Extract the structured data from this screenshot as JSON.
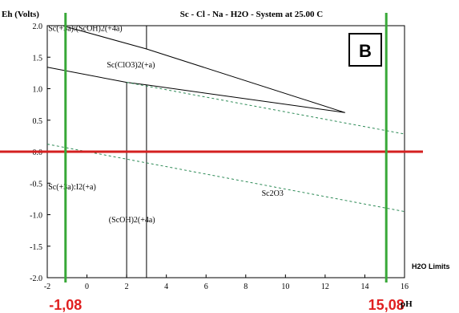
{
  "chart_data": {
    "type": "line",
    "title": "Sc - Cl - Na - H2O - System at 25.00 C",
    "ylabel": "Eh (Volts)",
    "xlabel": "pH",
    "xlim": [
      -2,
      16
    ],
    "ylim": [
      -2.0,
      2.0
    ],
    "x_ticks": [
      -2,
      0,
      2,
      4,
      6,
      8,
      10,
      12,
      14,
      16
    ],
    "y_ticks": [
      2.0,
      1.5,
      1.0,
      0.5,
      0.0,
      -0.5,
      -1.0,
      -1.5,
      -2.0
    ],
    "y_tick_labels": [
      "2.0",
      "1.5",
      "1.0",
      "0.5",
      "0.0",
      "-0.5",
      "-1.0",
      "-1.5",
      "-2.0"
    ],
    "series": [
      {
        "style": "solid-black",
        "points": [
          [
            -1.2,
            2.0
          ],
          [
            -1.0,
            1.98
          ],
          [
            3.0,
            1.63
          ],
          [
            13.0,
            0.62
          ]
        ]
      },
      {
        "style": "solid-black",
        "points": [
          [
            -2.0,
            1.34
          ],
          [
            2.0,
            1.1
          ],
          [
            3.0,
            1.06
          ],
          [
            13.0,
            0.62
          ]
        ]
      },
      {
        "style": "solid-black",
        "points": [
          [
            2.0,
            1.1
          ],
          [
            2.0,
            -2.0
          ]
        ]
      },
      {
        "style": "solid-black",
        "points": [
          [
            3.0,
            1.06
          ],
          [
            3.0,
            -2.0
          ]
        ]
      },
      {
        "style": "solid-black",
        "points": [
          [
            3.0,
            2.0
          ],
          [
            3.0,
            1.63
          ]
        ]
      },
      {
        "style": "dashed-green",
        "points": [
          [
            2.0,
            1.1
          ],
          [
            16.0,
            0.28
          ]
        ]
      },
      {
        "style": "dashed-green",
        "points": [
          [
            -2.0,
            0.12
          ],
          [
            16.0,
            -0.95
          ]
        ]
      }
    ],
    "region_labels": [
      {
        "text": "Sc(+3a):(ScOH)2(+4a)",
        "x": -1.95,
        "y": 1.92
      },
      {
        "text": "Sc(ClO3)2(+a)",
        "x": 1.0,
        "y": 1.34
      },
      {
        "text": "Sc(+3a):I2(+a)",
        "x": -1.95,
        "y": -0.6
      },
      {
        "text": "Sc2O3",
        "x": 8.8,
        "y": -0.7
      },
      {
        "text": "(ScOH)2(+4a)",
        "x": 1.1,
        "y": -1.12
      }
    ],
    "reference_lines": [
      {
        "orientation": "horizontal",
        "y": 0.0,
        "color": "#d42020"
      },
      {
        "orientation": "vertical",
        "x": -1.08,
        "color": "#38a838",
        "label": "-1,08"
      },
      {
        "orientation": "vertical",
        "x": 15.08,
        "color": "#38a838",
        "label": "15,08"
      }
    ],
    "panel_label": "B",
    "corner_note": "H2O Limits",
    "grid": false
  }
}
